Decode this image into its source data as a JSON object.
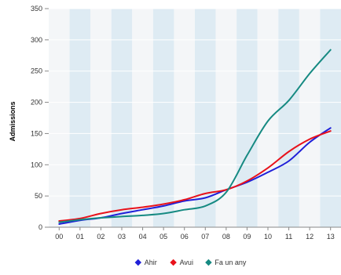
{
  "chart_data": {
    "type": "line",
    "ylabel": "Admissions",
    "xlabel": "",
    "categories": [
      "00",
      "01",
      "02",
      "03",
      "04",
      "05",
      "06",
      "07",
      "08",
      "09",
      "10",
      "11",
      "12",
      "13"
    ],
    "ylim": [
      0,
      350
    ],
    "yticks": [
      0,
      50,
      100,
      150,
      200,
      250,
      300,
      350
    ],
    "grid": "alternating vertical bands",
    "legend": "bottom-center",
    "series": [
      {
        "name": "Ahir",
        "color": "#1f1fd8",
        "values": [
          5,
          11,
          15,
          22,
          28,
          34,
          42,
          47,
          60,
          72,
          88,
          106,
          136,
          159
        ]
      },
      {
        "name": "Avui",
        "color": "#e8121b",
        "values": [
          10,
          14,
          22,
          28,
          32,
          37,
          44,
          54,
          60,
          74,
          95,
          121,
          141,
          154
        ]
      },
      {
        "name": "Fa un any",
        "color": "#168a82",
        "values": [
          8,
          12,
          15,
          17,
          19,
          22,
          28,
          34,
          56,
          115,
          170,
          203,
          246,
          284
        ]
      }
    ]
  }
}
